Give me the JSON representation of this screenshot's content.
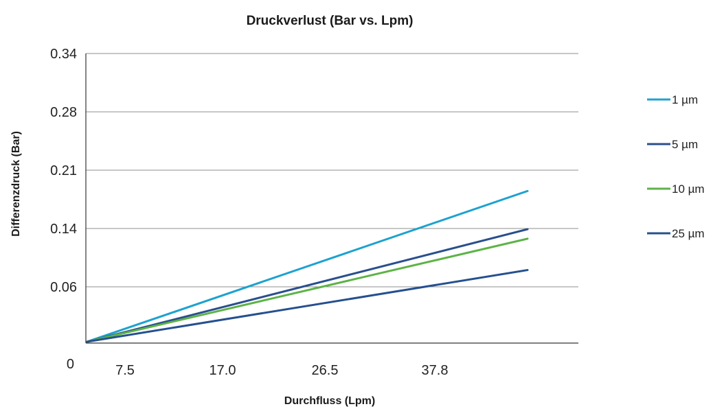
{
  "chart_data": {
    "type": "line",
    "title": "Druckverlust (Bar vs. Lpm)",
    "xlabel": "Durchfluss (Lpm)",
    "ylabel": "Differenzdruck (Bar)",
    "x_tick_labels": [
      "7.5",
      "17.0",
      "26.5",
      "37.8"
    ],
    "y_tick_labels": [
      "0",
      "0.06",
      "0.14",
      "0.21",
      "0.28",
      "0.34"
    ],
    "grid": true,
    "legend_position": "right",
    "series": [
      {
        "name": "1 µm",
        "color": "#1da2cf",
        "end_value": 0.185
      },
      {
        "name": "5 µm",
        "color": "#2a4f8c",
        "end_value": 0.139
      },
      {
        "name": "10 µm",
        "color": "#5cb346",
        "end_value": 0.126
      },
      {
        "name": "25 µm",
        "color": "#25508f",
        "end_value": 0.083
      }
    ],
    "start_value": 0.0
  }
}
